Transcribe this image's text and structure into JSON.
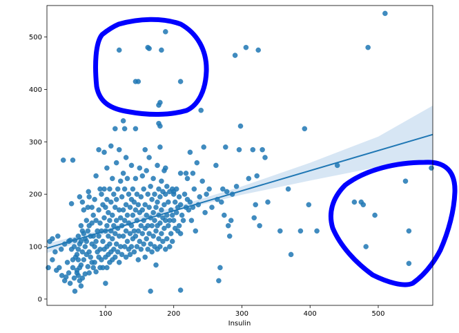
{
  "chart_data": {
    "type": "scatter",
    "title": "",
    "xlabel": "Insulin",
    "ylabel": "",
    "xlim": [
      14,
      580
    ],
    "ylim": [
      -12,
      560
    ],
    "xticks": [
      100,
      200,
      300,
      400,
      500
    ],
    "yticks": [
      0,
      100,
      200,
      300,
      400,
      500
    ],
    "grid": false,
    "colors": {
      "points": "#1f77b4",
      "regression_line": "#1f77b4",
      "confidence_band": "#c6dbef",
      "annotation": "#0000ff"
    },
    "regression": {
      "x": [
        14,
        580
      ],
      "y": [
        97,
        314
      ]
    },
    "confidence_band": {
      "x": [
        14,
        100,
        150,
        200,
        300,
        400,
        500,
        580
      ],
      "lower": [
        88,
        124,
        148,
        167,
        199,
        226,
        252,
        263
      ],
      "upper": [
        106,
        134,
        158,
        175,
        215,
        260,
        310,
        369
      ]
    },
    "annotations": [
      {
        "shape": "hand-drawn circle",
        "color": "blue",
        "around": "points with Insulin 120-300 and value 360-540"
      },
      {
        "shape": "hand-drawn circle",
        "color": "blue",
        "around": "points with Insulin 450-580 and value 20-265"
      }
    ],
    "points": [
      [
        16,
        60
      ],
      [
        18,
        110
      ],
      [
        22,
        115
      ],
      [
        22,
        75
      ],
      [
        26,
        90
      ],
      [
        28,
        55
      ],
      [
        30,
        120
      ],
      [
        32,
        60
      ],
      [
        35,
        95
      ],
      [
        36,
        45
      ],
      [
        38,
        265
      ],
      [
        40,
        105
      ],
      [
        40,
        35
      ],
      [
        42,
        42
      ],
      [
        44,
        70
      ],
      [
        46,
        110
      ],
      [
        46,
        50
      ],
      [
        48,
        30
      ],
      [
        48,
        112
      ],
      [
        50,
        182
      ],
      [
        50,
        95
      ],
      [
        52,
        265
      ],
      [
        52,
        75
      ],
      [
        52,
        60
      ],
      [
        54,
        100
      ],
      [
        54,
        40
      ],
      [
        55,
        112
      ],
      [
        55,
        15
      ],
      [
        56,
        80
      ],
      [
        58,
        85
      ],
      [
        58,
        50
      ],
      [
        58,
        55
      ],
      [
        60,
        120
      ],
      [
        60,
        95
      ],
      [
        60,
        75
      ],
      [
        60,
        45
      ],
      [
        62,
        195
      ],
      [
        62,
        105
      ],
      [
        62,
        60
      ],
      [
        62,
        35
      ],
      [
        64,
        140
      ],
      [
        64,
        110
      ],
      [
        64,
        65
      ],
      [
        64,
        25
      ],
      [
        66,
        185
      ],
      [
        66,
        130
      ],
      [
        66,
        90
      ],
      [
        66,
        40
      ],
      [
        68,
        170
      ],
      [
        68,
        125
      ],
      [
        68,
        75
      ],
      [
        70,
        115
      ],
      [
        70,
        100
      ],
      [
        70,
        48
      ],
      [
        72,
        150
      ],
      [
        72,
        110
      ],
      [
        72,
        85
      ],
      [
        74,
        175
      ],
      [
        74,
        130
      ],
      [
        74,
        62
      ],
      [
        75,
        205
      ],
      [
        76,
        195
      ],
      [
        76,
        140
      ],
      [
        76,
        90
      ],
      [
        76,
        50
      ],
      [
        78,
        120
      ],
      [
        78,
        80
      ],
      [
        80,
        175
      ],
      [
        80,
        145
      ],
      [
        80,
        105
      ],
      [
        80,
        70
      ],
      [
        82,
        160
      ],
      [
        82,
        120
      ],
      [
        82,
        60
      ],
      [
        84,
        190
      ],
      [
        84,
        100
      ],
      [
        84,
        70
      ],
      [
        86,
        235
      ],
      [
        86,
        150
      ],
      [
        86,
        110
      ],
      [
        86,
        52
      ],
      [
        88,
        130
      ],
      [
        88,
        90
      ],
      [
        90,
        285
      ],
      [
        90,
        170
      ],
      [
        90,
        120
      ],
      [
        90,
        80
      ],
      [
        92,
        210
      ],
      [
        92,
        145
      ],
      [
        92,
        95
      ],
      [
        92,
        60
      ],
      [
        94,
        200
      ],
      [
        94,
        130
      ],
      [
        94,
        75
      ],
      [
        96,
        180
      ],
      [
        96,
        110
      ],
      [
        96,
        60
      ],
      [
        98,
        280
      ],
      [
        98,
        210
      ],
      [
        98,
        155
      ],
      [
        98,
        95
      ],
      [
        100,
        175
      ],
      [
        100,
        130
      ],
      [
        100,
        80
      ],
      [
        100,
        30
      ],
      [
        102,
        250
      ],
      [
        102,
        190
      ],
      [
        102,
        140
      ],
      [
        102,
        100
      ],
      [
        102,
        60
      ],
      [
        104,
        165
      ],
      [
        104,
        120
      ],
      [
        104,
        85
      ],
      [
        106,
        210
      ],
      [
        106,
        150
      ],
      [
        106,
        105
      ],
      [
        106,
        70
      ],
      [
        108,
        292
      ],
      [
        108,
        185
      ],
      [
        108,
        130
      ],
      [
        108,
        90
      ],
      [
        110,
        230
      ],
      [
        110,
        160
      ],
      [
        110,
        115
      ],
      [
        110,
        75
      ],
      [
        112,
        200
      ],
      [
        112,
        140
      ],
      [
        112,
        95
      ],
      [
        114,
        325
      ],
      [
        114,
        175
      ],
      [
        114,
        125
      ],
      [
        114,
        80
      ],
      [
        116,
        260
      ],
      [
        116,
        190
      ],
      [
        116,
        150
      ],
      [
        116,
        105
      ],
      [
        118,
        210
      ],
      [
        118,
        135
      ],
      [
        118,
        90
      ],
      [
        120,
        475
      ],
      [
        120,
        285
      ],
      [
        120,
        170
      ],
      [
        120,
        120
      ],
      [
        120,
        70
      ],
      [
        122,
        225
      ],
      [
        122,
        155
      ],
      [
        122,
        100
      ],
      [
        124,
        195
      ],
      [
        124,
        140
      ],
      [
        124,
        85
      ],
      [
        126,
        340
      ],
      [
        126,
        240
      ],
      [
        126,
        170
      ],
      [
        126,
        120
      ],
      [
        128,
        325
      ],
      [
        128,
        210
      ],
      [
        128,
        150
      ],
      [
        128,
        100
      ],
      [
        130,
        270
      ],
      [
        130,
        180
      ],
      [
        130,
        130
      ],
      [
        130,
        80
      ],
      [
        132,
        230
      ],
      [
        132,
        160
      ],
      [
        132,
        110
      ],
      [
        134,
        200
      ],
      [
        134,
        145
      ],
      [
        134,
        95
      ],
      [
        136,
        175
      ],
      [
        136,
        125
      ],
      [
        136,
        85
      ],
      [
        138,
        255
      ],
      [
        138,
        190
      ],
      [
        138,
        140
      ],
      [
        138,
        100
      ],
      [
        140,
        210
      ],
      [
        140,
        160
      ],
      [
        140,
        115
      ],
      [
        142,
        185
      ],
      [
        142,
        130
      ],
      [
        142,
        90
      ],
      [
        144,
        415
      ],
      [
        144,
        325
      ],
      [
        144,
        230
      ],
      [
        144,
        170
      ],
      [
        144,
        120
      ],
      [
        146,
        200
      ],
      [
        146,
        150
      ],
      [
        146,
        100
      ],
      [
        148,
        415
      ],
      [
        148,
        180
      ],
      [
        148,
        130
      ],
      [
        148,
        75
      ],
      [
        150,
        250
      ],
      [
        150,
        165
      ],
      [
        150,
        110
      ],
      [
        152,
        195
      ],
      [
        152,
        140
      ],
      [
        152,
        95
      ],
      [
        154,
        235
      ],
      [
        154,
        170
      ],
      [
        154,
        125
      ],
      [
        156,
        210
      ],
      [
        156,
        150
      ],
      [
        156,
        105
      ],
      [
        158,
        285
      ],
      [
        158,
        180
      ],
      [
        158,
        135
      ],
      [
        158,
        80
      ],
      [
        160,
        245
      ],
      [
        160,
        160
      ],
      [
        160,
        115
      ],
      [
        162,
        480
      ],
      [
        162,
        200
      ],
      [
        162,
        140
      ],
      [
        162,
        95
      ],
      [
        164,
        478
      ],
      [
        164,
        270
      ],
      [
        164,
        175
      ],
      [
        164,
        125
      ],
      [
        166,
        215
      ],
      [
        166,
        155
      ],
      [
        166,
        105
      ],
      [
        166,
        15
      ],
      [
        168,
        190
      ],
      [
        168,
        140
      ],
      [
        168,
        90
      ],
      [
        170,
        230
      ],
      [
        170,
        165
      ],
      [
        170,
        120
      ],
      [
        172,
        200
      ],
      [
        172,
        150
      ],
      [
        172,
        100
      ],
      [
        174,
        175
      ],
      [
        174,
        130
      ],
      [
        174,
        65
      ],
      [
        176,
        255
      ],
      [
        176,
        185
      ],
      [
        176,
        140
      ],
      [
        176,
        95
      ],
      [
        178,
        370
      ],
      [
        178,
        335
      ],
      [
        178,
        210
      ],
      [
        178,
        160
      ],
      [
        178,
        115
      ],
      [
        180,
        375
      ],
      [
        180,
        330
      ],
      [
        180,
        290
      ],
      [
        180,
        195
      ],
      [
        180,
        145
      ],
      [
        180,
        100
      ],
      [
        182,
        475
      ],
      [
        182,
        225
      ],
      [
        182,
        170
      ],
      [
        182,
        125
      ],
      [
        184,
        205
      ],
      [
        184,
        155
      ],
      [
        184,
        110
      ],
      [
        186,
        245
      ],
      [
        186,
        180
      ],
      [
        186,
        135
      ],
      [
        188,
        510
      ],
      [
        188,
        250
      ],
      [
        188,
        200
      ],
      [
        188,
        150
      ],
      [
        188,
        95
      ],
      [
        190,
        215
      ],
      [
        190,
        160
      ],
      [
        190,
        115
      ],
      [
        192,
        185
      ],
      [
        192,
        140
      ],
      [
        194,
        205
      ],
      [
        194,
        150
      ],
      [
        194,
        100
      ],
      [
        196,
        170
      ],
      [
        196,
        125
      ],
      [
        198,
        210
      ],
      [
        198,
        160
      ],
      [
        198,
        110
      ],
      [
        200,
        205
      ],
      [
        200,
        150
      ],
      [
        200,
        200
      ],
      [
        202,
        185
      ],
      [
        202,
        135
      ],
      [
        204,
        210
      ],
      [
        204,
        165
      ],
      [
        206,
        175
      ],
      [
        206,
        130
      ],
      [
        208,
        195
      ],
      [
        208,
        140
      ],
      [
        210,
        415
      ],
      [
        210,
        240
      ],
      [
        210,
        180
      ],
      [
        210,
        125
      ],
      [
        210,
        17
      ],
      [
        212,
        160
      ],
      [
        214,
        150
      ],
      [
        216,
        200
      ],
      [
        218,
        240
      ],
      [
        218,
        175
      ],
      [
        220,
        230
      ],
      [
        220,
        190
      ],
      [
        222,
        170
      ],
      [
        224,
        280
      ],
      [
        224,
        185
      ],
      [
        226,
        150
      ],
      [
        228,
        240
      ],
      [
        228,
        175
      ],
      [
        230,
        210
      ],
      [
        232,
        130
      ],
      [
        234,
        260
      ],
      [
        236,
        180
      ],
      [
        238,
        195
      ],
      [
        240,
        360
      ],
      [
        242,
        225
      ],
      [
        244,
        290
      ],
      [
        246,
        165
      ],
      [
        248,
        200
      ],
      [
        252,
        210
      ],
      [
        256,
        175
      ],
      [
        262,
        255
      ],
      [
        264,
        190
      ],
      [
        266,
        35
      ],
      [
        268,
        60
      ],
      [
        270,
        185
      ],
      [
        272,
        210
      ],
      [
        274,
        160
      ],
      [
        276,
        290
      ],
      [
        278,
        205
      ],
      [
        280,
        140
      ],
      [
        282,
        120
      ],
      [
        284,
        150
      ],
      [
        286,
        200
      ],
      [
        290,
        465
      ],
      [
        292,
        215
      ],
      [
        296,
        285
      ],
      [
        298,
        330
      ],
      [
        306,
        480
      ],
      [
        310,
        230
      ],
      [
        316,
        285
      ],
      [
        318,
        155
      ],
      [
        320,
        180
      ],
      [
        322,
        235
      ],
      [
        324,
        475
      ],
      [
        326,
        140
      ],
      [
        330,
        285
      ],
      [
        334,
        270
      ],
      [
        338,
        185
      ],
      [
        356,
        130
      ],
      [
        368,
        210
      ],
      [
        372,
        85
      ],
      [
        386,
        130
      ],
      [
        392,
        325
      ],
      [
        398,
        180
      ],
      [
        410,
        130
      ],
      [
        440,
        255
      ],
      [
        465,
        185
      ],
      [
        475,
        185
      ],
      [
        478,
        180
      ],
      [
        482,
        100
      ],
      [
        485,
        480
      ],
      [
        495,
        160
      ],
      [
        510,
        545
      ],
      [
        540,
        225
      ],
      [
        545,
        130
      ],
      [
        545,
        68
      ],
      [
        578,
        250
      ]
    ]
  }
}
